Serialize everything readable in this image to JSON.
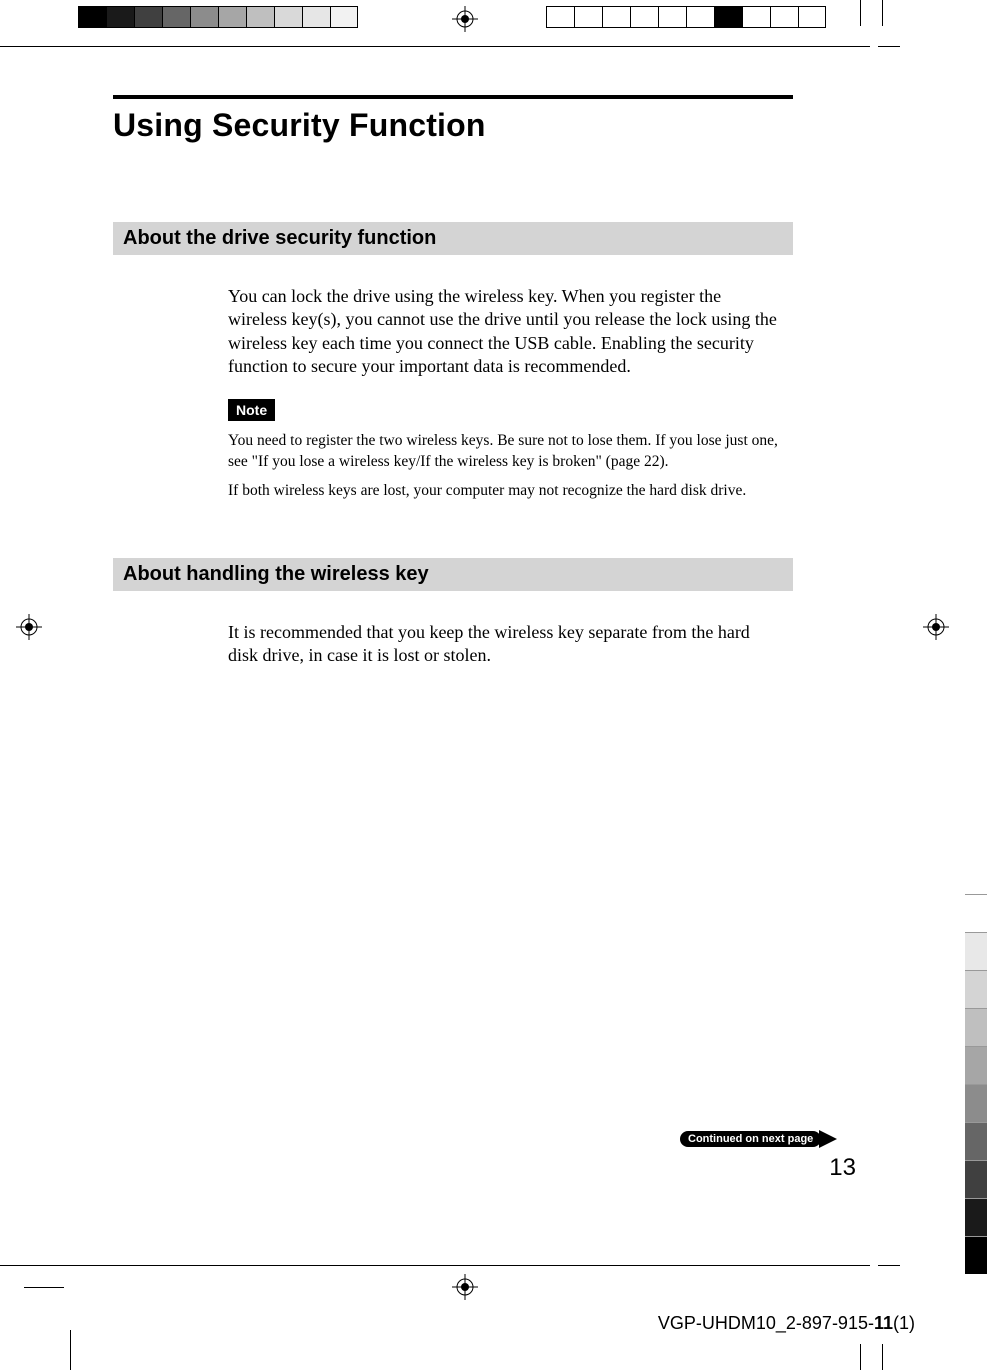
{
  "printer_marks": {
    "left_swatches": [
      "#000000",
      "#1a1a1a",
      "#404040",
      "#666666",
      "#8c8c8c",
      "#a6a6a6",
      "#bfbfbf",
      "#d9d9d9",
      "#e6e6e6",
      "#f2f2f2"
    ],
    "right_swatches_fill_index": 6,
    "right_swatches_count": 10,
    "right_index_tabs": [
      "#ffffff",
      "#e8e8e8",
      "#d4d4d4",
      "#bfbfbf",
      "#a6a6a6",
      "#8c8c8c",
      "#666666",
      "#404040",
      "#1a1a1a",
      "#000000"
    ]
  },
  "page": {
    "title": "Using Security Function",
    "sections": [
      {
        "heading": "About the drive security function",
        "body": "You can lock the drive using the wireless key. When you register the wireless key(s), you cannot use the drive until you release the lock using the wireless key each time you connect the USB cable. Enabling the security function to secure your important data is recommended.",
        "note_label": "Note",
        "note_paras": [
          "You need to register the two wireless keys. Be sure not to lose them. If you lose just one, see \"If you lose a wireless key/If the wireless key is broken\" (page 22).",
          "If both wireless keys are lost, your computer may not recognize the hard disk drive."
        ]
      },
      {
        "heading": "About handling the wireless key",
        "body": "It is recommended that you keep the wireless key separate from the hard disk drive,  in case it is lost or stolen."
      }
    ],
    "continued_label": "Continued on next page",
    "page_number": "13",
    "footer_id_prefix": "VGP-UHDM10_2-897-915-",
    "footer_id_bold": "11",
    "footer_id_suffix": "(1)"
  },
  "colors": {
    "section_bg": "#d4d4d4",
    "black": "#000000",
    "white": "#ffffff"
  }
}
